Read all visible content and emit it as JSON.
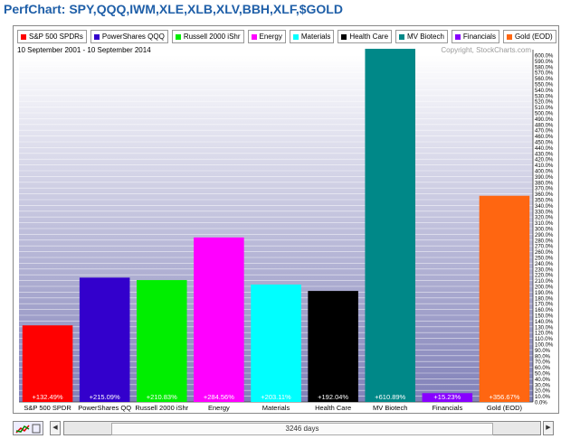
{
  "title": "PerfChart: SPY,QQQ,IWM,XLE,XLB,XLV,BBH,XLF,$GOLD",
  "date_range": "10 September 2001 - 10 September 2014",
  "copyright": "Copyright, StockCharts.com",
  "scroll_label": "3246 days",
  "colors": {
    "title": "#1f5fa8",
    "grid": "#b8b8d8",
    "bg_top": "#ffffff",
    "bg_bottom": "#8080b8"
  },
  "icons": [
    "perfchart-icon",
    "scroll-left-icon",
    "scroll-right-icon"
  ],
  "chart_data": {
    "type": "bar",
    "categories": [
      "S&P 500 SPDR",
      "PowerShares QQ",
      "Russell 2000 iShr",
      "Energy",
      "Materials",
      "Health Care",
      "MV Biotech",
      "Financials",
      "Gold (EOD)"
    ],
    "legend": [
      "S&P 500 SPDRs",
      "PowerShares QQQ",
      "Russell 2000 iShr",
      "Energy",
      "Materials",
      "Health Care",
      "MV Biotech",
      "Financials",
      "Gold (EOD)"
    ],
    "values": [
      132.49,
      215.09,
      210.83,
      284.56,
      203.11,
      192.04,
      610.89,
      15.23,
      356.67
    ],
    "value_labels": [
      "+132.49%",
      "+215.09%",
      "+210.83%",
      "+284.56%",
      "+203.11%",
      "+192.04%",
      "+610.89%",
      "+15.23%",
      "+356.67%"
    ],
    "colors": [
      "#ff0000",
      "#3300cc",
      "#00ee00",
      "#ff00ff",
      "#00ffff",
      "#000000",
      "#008888",
      "#8800ff",
      "#ff6611"
    ],
    "ylim": [
      0,
      600
    ],
    "ytick_step": 10,
    "ytick_suffix": "%",
    "grid": true
  }
}
